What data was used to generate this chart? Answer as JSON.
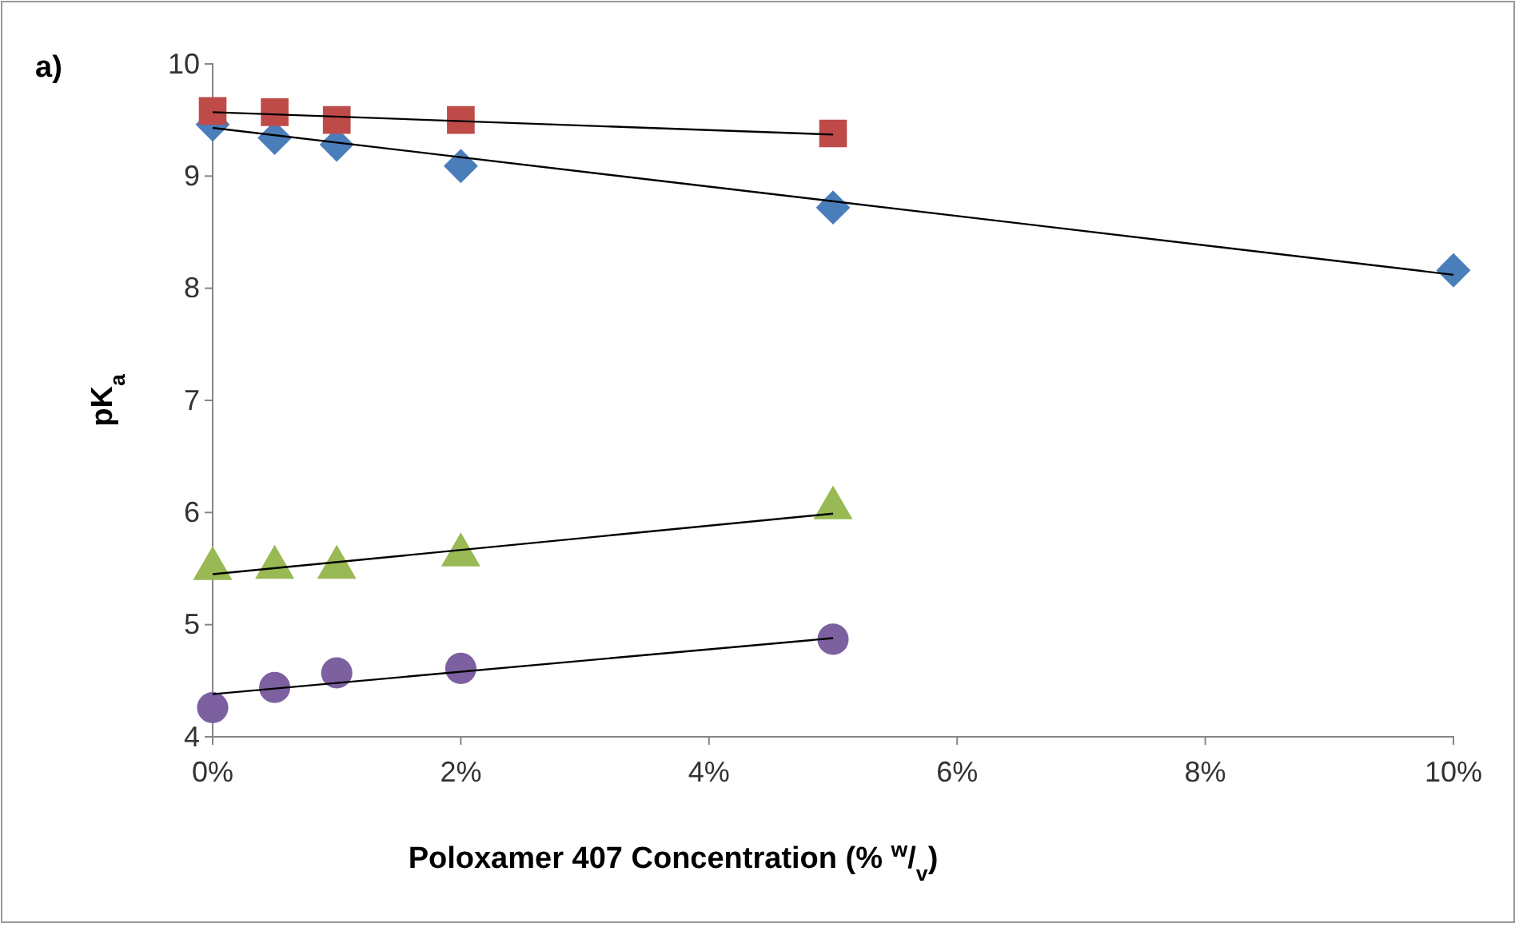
{
  "chart_data": {
    "type": "scatter",
    "xlabel": "Poloxamer 407 Concentration (% $^{w}$/$_{v}$)",
    "ylabel": "pK$_{a}$",
    "annotations": [
      "a)"
    ],
    "xlim": [
      0,
      10
    ],
    "xticks": [
      {
        "value": 0,
        "label": "0%"
      },
      {
        "value": 2,
        "label": "2%"
      },
      {
        "value": 4,
        "label": "4%"
      },
      {
        "value": 6,
        "label": "6%"
      },
      {
        "value": 8,
        "label": "8%"
      },
      {
        "value": 10,
        "label": "10%"
      }
    ],
    "ylim": [
      4,
      10
    ],
    "yticks": [
      4,
      5,
      6,
      7,
      8,
      9,
      10
    ],
    "grid": false,
    "series": [
      {
        "color": "#4a7ebb",
        "marker": "diamond",
        "x": [
          0,
          0.5,
          1,
          2,
          5,
          10
        ],
        "values": [
          9.46,
          9.34,
          9.28,
          9.09,
          8.72,
          8.16
        ]
      },
      {
        "color": "#be4b48",
        "marker": "square",
        "x": [
          0,
          0.5,
          1,
          2,
          5
        ],
        "values": [
          9.58,
          9.57,
          9.5,
          9.5,
          9.38
        ]
      },
      {
        "color": "#98b954",
        "marker": "triangle",
        "x": [
          0,
          0.5,
          1,
          2,
          5
        ],
        "values": [
          5.5,
          5.51,
          5.51,
          5.62,
          6.04
        ]
      },
      {
        "color": "#7d60a0",
        "marker": "circle",
        "x": [
          0,
          0.5,
          1,
          2,
          5
        ],
        "values": [
          4.26,
          4.44,
          4.57,
          4.61,
          4.87
        ]
      },
      {
        "type": "line",
        "color": "#000000",
        "x": [
          0,
          10
        ],
        "values": [
          9.43,
          8.12
        ]
      },
      {
        "type": "line",
        "color": "#000000",
        "x": [
          0,
          5
        ],
        "values": [
          9.57,
          9.37
        ]
      },
      {
        "type": "line",
        "color": "#000000",
        "x": [
          0,
          5
        ],
        "values": [
          5.45,
          5.99
        ]
      },
      {
        "type": "line",
        "color": "#000000",
        "x": [
          0,
          5
        ],
        "values": [
          4.38,
          4.88
        ]
      }
    ]
  }
}
